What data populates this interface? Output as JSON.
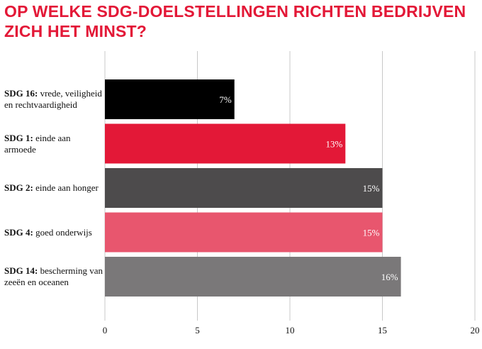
{
  "chart_data": {
    "type": "bar",
    "orientation": "horizontal",
    "title": "OP WELKE SDG-DOELSTELLINGEN RICHTEN BEDRIJVEN ZICH HET MINST?",
    "categories": [
      {
        "code": "SDG 16:",
        "name": "vrede, veiligheid en rechtvaardigheid"
      },
      {
        "code": "SDG 1:",
        "name": "einde aan armoede"
      },
      {
        "code": "SDG 2:",
        "name": "einde aan honger"
      },
      {
        "code": "SDG 4:",
        "name": "goed onderwijs"
      },
      {
        "code": "SDG 14:",
        "name": "bescherming van zeeën en oceanen"
      }
    ],
    "values": [
      7,
      13,
      15,
      15,
      16
    ],
    "value_labels": [
      "7%",
      "13%",
      "15%",
      "15%",
      "16%"
    ],
    "colors": [
      "#000000",
      "#e31837",
      "#4d4b4c",
      "#e8566e",
      "#7a7879"
    ],
    "xlim": [
      0,
      20
    ],
    "xticks": [
      "0",
      "5",
      "10",
      "15",
      "20"
    ],
    "grid": true
  }
}
